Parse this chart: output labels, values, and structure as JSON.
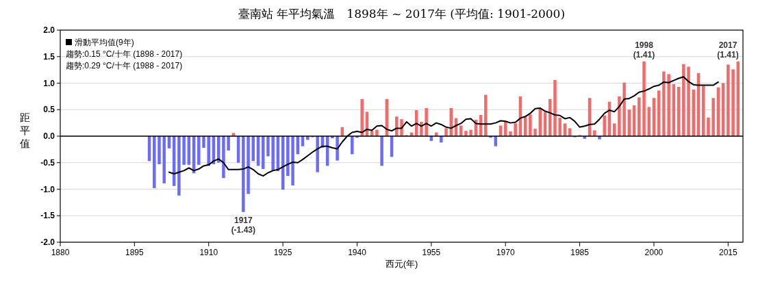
{
  "chart_data": {
    "type": "bar",
    "title": "臺南站 年平均氣溫　1898年 ~ 2017年 (平均值: 1901-2000)",
    "xlabel": "西元(年)",
    "ylabel": "距平值",
    "xlim": [
      1880,
      2018
    ],
    "xticks": [
      1880,
      1895,
      1910,
      1925,
      1940,
      1955,
      1970,
      1985,
      2000,
      2015
    ],
    "ylim": [
      -2,
      2
    ],
    "yticks": [
      {
        "value": -2,
        "label": "-2.0"
      },
      {
        "value": -1.5,
        "label": "-1.5"
      },
      {
        "value": -1,
        "label": "-1.0"
      },
      {
        "value": -0.5,
        "label": "-0.5"
      },
      {
        "value": 0,
        "label": "0.0"
      },
      {
        "value": 0.5,
        "label": "0.5"
      },
      {
        "value": 1,
        "label": "1.0"
      },
      {
        "value": 1.5,
        "label": "1.5"
      },
      {
        "value": 2,
        "label": "2.0"
      }
    ],
    "grid": "y",
    "legend": "top left",
    "ref_lines": [
      {
        "axis": "y",
        "value": 0,
        "color": "#000000"
      }
    ],
    "annotations": [
      "趨勢:0.15 °C/十年 (1898 - 2017)",
      "趨勢:0.29 °C/十年 (1988 - 2017)",
      {
        "text": "1917\n(-1.43)",
        "x": 1917,
        "y": -1.43
      },
      {
        "text": "1998\n(1.41)",
        "x": 1998,
        "y": 1.41
      },
      {
        "text": "2017\n(1.41)",
        "x": 2017,
        "y": 1.41
      }
    ],
    "series": [
      {
        "x": [
          1898,
          1899,
          1900,
          1901,
          1902,
          1903,
          1904,
          1905,
          1906,
          1907,
          1908,
          1909,
          1910,
          1911,
          1912,
          1913,
          1914,
          1915,
          1916,
          1917,
          1918,
          1919,
          1920,
          1921,
          1922,
          1923,
          1924,
          1925,
          1926,
          1927,
          1928,
          1929,
          1930,
          1931,
          1932,
          1933,
          1934,
          1935,
          1936,
          1937,
          1938,
          1939,
          1940,
          1941,
          1942,
          1943,
          1944,
          1945,
          1946,
          1947,
          1948,
          1949,
          1950,
          1951,
          1952,
          1953,
          1954,
          1955,
          1956,
          1957,
          1958,
          1959,
          1960,
          1961,
          1962,
          1963,
          1964,
          1965,
          1966,
          1967,
          1968,
          1969,
          1970,
          1971,
          1972,
          1973,
          1974,
          1975,
          1976,
          1977,
          1978,
          1979,
          1980,
          1981,
          1982,
          1983,
          1984,
          1985,
          1986,
          1987,
          1988,
          1989,
          1990,
          1991,
          1992,
          1993,
          1994,
          1995,
          1996,
          1997,
          1998,
          1999,
          2000,
          2001,
          2002,
          2003,
          2004,
          2005,
          2006,
          2007,
          2008,
          2009,
          2010,
          2011,
          2012,
          2013,
          2014,
          2015,
          2016,
          2017
        ],
        "values": [
          -0.47,
          -0.98,
          -0.53,
          -0.89,
          -0.23,
          -0.94,
          -1.12,
          -0.54,
          -0.54,
          -0.7,
          -0.54,
          -0.22,
          -0.56,
          -0.53,
          -0.5,
          -0.79,
          -0.27,
          0.06,
          -0.5,
          -1.43,
          -1.09,
          -0.47,
          -0.56,
          -0.62,
          -0.38,
          -0.65,
          -0.66,
          -1.01,
          -0.75,
          -0.93,
          -0.34,
          -0.19,
          -0.07,
          -0.02,
          -0.68,
          -0.22,
          -0.56,
          -0.04,
          -0.46,
          0.17,
          0,
          -0.34,
          -0.03,
          0.7,
          0.46,
          0.1,
          0.12,
          -0.56,
          0.7,
          -0.39,
          0.37,
          0.32,
          0.02,
          0.07,
          0.49,
          0.27,
          0.53,
          -0.09,
          0.07,
          -0.12,
          0.15,
          0.53,
          0.34,
          0.2,
          0.1,
          0.12,
          0.31,
          0.4,
          0.78,
          -0.03,
          -0.19,
          0.2,
          0.28,
          0.09,
          0.24,
          0.75,
          0.37,
          0.41,
          0.14,
          0.52,
          0.45,
          0.7,
          1.06,
          0.35,
          0.24,
          0.15,
          -0.02,
          0.02,
          -0.05,
          0.72,
          0.11,
          -0.06,
          0.39,
          0.65,
          0.24,
          0.75,
          1.01,
          0.5,
          0.58,
          0.73,
          1.41,
          0.55,
          0.72,
          0.86,
          1.22,
          1.17,
          0.98,
          0.93,
          1.36,
          1.31,
          0.88,
          1.19,
          0.95,
          0.35,
          0.72,
          0.92,
          1.0,
          1.35,
          1.26,
          1.41
        ],
        "colors": [
          "#6b6bff",
          "#6b6bff",
          "#6b6bff",
          "#6b6bff",
          "#6b6bff",
          "#6b6bff",
          "#6b6bff",
          "#6b6bff",
          "#6b6bff",
          "#6b6bff",
          "#6b6bff",
          "#6b6bff",
          "#6b6bff",
          "#6b6bff",
          "#6b6bff",
          "#6b6bff",
          "#6b6bff",
          "#f26b6b",
          "#6b6bff",
          "#6b6bff",
          "#6b6bff",
          "#6b6bff",
          "#6b6bff",
          "#6b6bff",
          "#6b6bff",
          "#6b6bff",
          "#6b6bff",
          "#6b6bff",
          "#6b6bff",
          "#6b6bff",
          "#6b6bff",
          "#6b6bff",
          "#6b6bff",
          "#6b6bff",
          "#6b6bff",
          "#6b6bff",
          "#6b6bff",
          "#6b6bff",
          "#6b6bff",
          "#f26b6b",
          "#6b6bff",
          "#6b6bff",
          "#6b6bff",
          "#f26b6b",
          "#f26b6b",
          "#f26b6b",
          "#f26b6b",
          "#6b6bff",
          "#f26b6b",
          "#6b6bff",
          "#f26b6b",
          "#f26b6b",
          "#f26b6b",
          "#f26b6b",
          "#f26b6b",
          "#f26b6b",
          "#f26b6b",
          "#6b6bff",
          "#f26b6b",
          "#6b6bff",
          "#f26b6b",
          "#f26b6b",
          "#f26b6b",
          "#f26b6b",
          "#f26b6b",
          "#f26b6b",
          "#f26b6b",
          "#f26b6b",
          "#f26b6b",
          "#6b6bff",
          "#6b6bff",
          "#f26b6b",
          "#f26b6b",
          "#f26b6b",
          "#f26b6b",
          "#f26b6b",
          "#f26b6b",
          "#f26b6b",
          "#f26b6b",
          "#f26b6b",
          "#f26b6b",
          "#f26b6b",
          "#f26b6b",
          "#f26b6b",
          "#f26b6b",
          "#f26b6b",
          "#6b6bff",
          "#f26b6b",
          "#6b6bff",
          "#f26b6b",
          "#f26b6b",
          "#6b6bff",
          "#f26b6b",
          "#f26b6b",
          "#f26b6b",
          "#f26b6b",
          "#f26b6b",
          "#f26b6b",
          "#f26b6b",
          "#f26b6b",
          "#f26b6b",
          "#f26b6b",
          "#f26b6b",
          "#f26b6b",
          "#f26b6b",
          "#f26b6b",
          "#f26b6b",
          "#f26b6b",
          "#f26b6b",
          "#f26b6b",
          "#f26b6b",
          "#f26b6b",
          "#f26b6b",
          "#f26b6b",
          "#f26b6b",
          "#f26b6b",
          "#f26b6b",
          "#f26b6b",
          "#f26b6b",
          "#f26b6b"
        ]
      },
      {
        "type": "line",
        "name": "滑動平均值(9年)",
        "color": "#000000",
        "x": [
          1902,
          1903,
          1904,
          1905,
          1906,
          1907,
          1908,
          1909,
          1910,
          1911,
          1912,
          1913,
          1914,
          1915,
          1916,
          1917,
          1918,
          1919,
          1920,
          1921,
          1922,
          1923,
          1924,
          1925,
          1926,
          1927,
          1928,
          1929,
          1930,
          1931,
          1932,
          1933,
          1934,
          1935,
          1936,
          1937,
          1938,
          1939,
          1940,
          1941,
          1942,
          1943,
          1944,
          1945,
          1946,
          1947,
          1948,
          1949,
          1950,
          1951,
          1952,
          1953,
          1954,
          1955,
          1956,
          1957,
          1958,
          1959,
          1960,
          1961,
          1962,
          1963,
          1964,
          1965,
          1966,
          1967,
          1968,
          1969,
          1970,
          1971,
          1972,
          1973,
          1974,
          1975,
          1976,
          1977,
          1978,
          1979,
          1980,
          1981,
          1982,
          1983,
          1984,
          1985,
          1986,
          1987,
          1988,
          1989,
          1990,
          1991,
          1992,
          1993,
          1994,
          1995,
          1996,
          1997,
          1998,
          1999,
          2000,
          2001,
          2002,
          2003,
          2004,
          2005,
          2006,
          2007,
          2008,
          2009,
          2010,
          2011,
          2012,
          2013
        ],
        "values": [
          -0.68,
          -0.71,
          -0.68,
          -0.65,
          -0.6,
          -0.65,
          -0.62,
          -0.56,
          -0.54,
          -0.47,
          -0.43,
          -0.5,
          -0.63,
          -0.63,
          -0.63,
          -0.62,
          -0.58,
          -0.63,
          -0.71,
          -0.75,
          -0.69,
          -0.65,
          -0.63,
          -0.58,
          -0.53,
          -0.49,
          -0.5,
          -0.44,
          -0.37,
          -0.3,
          -0.24,
          -0.19,
          -0.19,
          -0.22,
          -0.24,
          -0.11,
          0.0,
          0.07,
          0.09,
          0.07,
          0.13,
          0.11,
          0.19,
          0.2,
          0.13,
          0.1,
          0.15,
          0.15,
          0.27,
          0.19,
          0.24,
          0.19,
          0.24,
          0.19,
          0.25,
          0.22,
          0.17,
          0.15,
          0.2,
          0.24,
          0.32,
          0.33,
          0.24,
          0.23,
          0.23,
          0.23,
          0.25,
          0.29,
          0.28,
          0.25,
          0.26,
          0.34,
          0.37,
          0.43,
          0.52,
          0.53,
          0.47,
          0.44,
          0.4,
          0.39,
          0.33,
          0.35,
          0.28,
          0.17,
          0.19,
          0.22,
          0.23,
          0.32,
          0.43,
          0.49,
          0.46,
          0.56,
          0.7,
          0.71,
          0.76,
          0.83,
          0.85,
          0.89,
          0.94,
          0.96,
          1.02,
          1.01,
          1.05,
          1.09,
          1.12,
          1.03,
          0.97,
          0.96,
          0.96,
          0.96,
          0.96,
          1.02
        ]
      }
    ]
  }
}
